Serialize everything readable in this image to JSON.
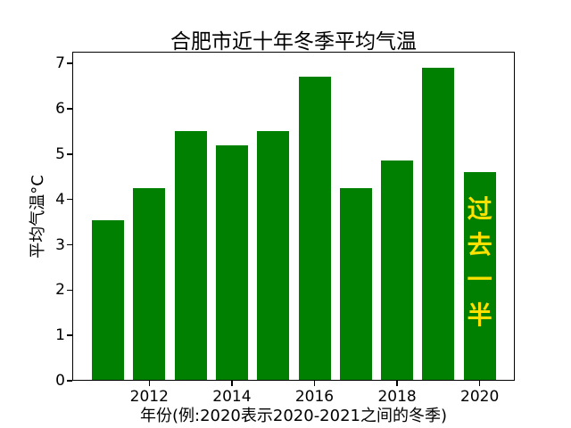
{
  "chart_data": {
    "type": "bar",
    "title": "合肥市近十年冬季平均气温",
    "xlabel": "年份(例:2020表示2020-2021之间的冬季)",
    "ylabel": "平均气温°C",
    "categories": [
      "2011",
      "2012",
      "2013",
      "2014",
      "2015",
      "2016",
      "2017",
      "2018",
      "2019",
      "2020"
    ],
    "values": [
      3.55,
      4.25,
      5.5,
      5.2,
      5.5,
      6.7,
      4.25,
      4.85,
      6.9,
      4.6
    ],
    "bar_color": "#008000",
    "yticks": [
      0,
      1,
      2,
      3,
      4,
      5,
      6,
      7
    ],
    "ylim": [
      0,
      7.26
    ],
    "xticks": [
      "2012",
      "2014",
      "2016",
      "2018",
      "2020"
    ],
    "grid": false,
    "legend_position": "none",
    "annotation": {
      "text": "过去一半",
      "color": "#FFE100",
      "target_category": "2020",
      "orientation": "vertical"
    }
  }
}
